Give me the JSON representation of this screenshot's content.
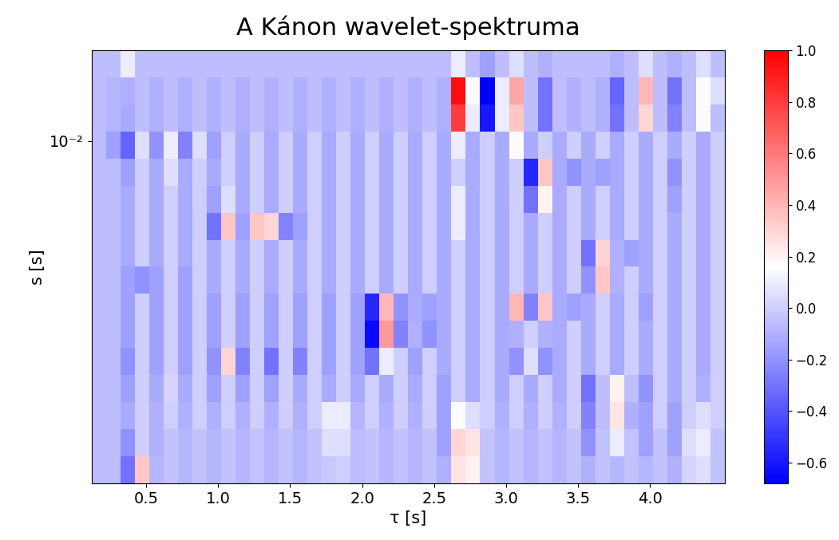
{
  "chart_data": {
    "type": "heatmap",
    "title": "A Kánon wavelet-spektruma",
    "x_label": "τ [s]",
    "y_label": "s [s]",
    "log": "y",
    "xlim": [
      0.12,
      4.52
    ],
    "xticks": [
      0.5,
      1.0,
      1.5,
      2.0,
      2.5,
      3.0,
      3.5,
      4.0
    ],
    "ylim": [
      0.00154,
      0.016425
    ],
    "yticks": [
      {
        "value": 0.01,
        "label": "10⁻²"
      }
    ],
    "x_edges": [
      0.12,
      0.22,
      0.32,
      0.42,
      0.52,
      0.62,
      0.72,
      0.82,
      0.92,
      1.02,
      1.12,
      1.22,
      1.32,
      1.42,
      1.52,
      1.62,
      1.72,
      1.82,
      1.92,
      2.02,
      2.12,
      2.22,
      2.32,
      2.42,
      2.52,
      2.62,
      2.72,
      2.82,
      2.92,
      3.02,
      3.12,
      3.22,
      3.32,
      3.42,
      3.52,
      3.62,
      3.72,
      3.82,
      3.92,
      4.02,
      4.12,
      4.22,
      4.32,
      4.42,
      4.52
    ],
    "y_edges": [
      0.00154,
      0.001785,
      0.00207,
      0.0024,
      0.002783,
      0.003227,
      0.003741,
      0.004337,
      0.005029,
      0.005831,
      0.006761,
      0.007838,
      0.009089,
      0.010537,
      0.012218,
      0.014166,
      0.016425
    ],
    "cells": [
      [
        -0.05,
        -0.05,
        -0.3,
        0.35,
        -0.08,
        -0.04,
        -0.08,
        -0.04,
        -0.08,
        -0.04,
        -0.08,
        -0.04,
        -0.08,
        -0.04,
        -0.08,
        -0.04,
        -0.02,
        0.0,
        -0.06,
        -0.04,
        -0.08,
        -0.04,
        -0.08,
        -0.04,
        -0.1,
        0.25,
        0.2,
        -0.04,
        -0.08,
        -0.04,
        -0.08,
        -0.04,
        -0.08,
        -0.04,
        -0.1,
        -0.04,
        -0.08,
        -0.04,
        -0.08,
        -0.04,
        -0.1,
        0.02,
        0.05,
        -0.04
      ],
      [
        -0.05,
        -0.05,
        -0.2,
        0.0,
        -0.1,
        -0.04,
        -0.08,
        -0.04,
        -0.08,
        -0.04,
        -0.08,
        -0.04,
        -0.08,
        -0.04,
        -0.08,
        -0.04,
        0.05,
        0.05,
        -0.06,
        -0.04,
        -0.08,
        -0.04,
        -0.08,
        -0.04,
        -0.15,
        0.3,
        0.25,
        -0.04,
        -0.08,
        -0.04,
        -0.08,
        -0.04,
        -0.08,
        -0.04,
        -0.2,
        -0.04,
        0.1,
        -0.04,
        -0.15,
        -0.04,
        -0.15,
        0.05,
        0.1,
        -0.04
      ],
      [
        -0.05,
        -0.05,
        -0.12,
        0.0,
        -0.1,
        0.0,
        -0.1,
        0.0,
        -0.1,
        0.0,
        -0.1,
        0.0,
        -0.1,
        0.0,
        -0.1,
        0.0,
        0.1,
        0.1,
        -0.08,
        0.0,
        -0.1,
        0.0,
        -0.1,
        0.0,
        -0.15,
        0.15,
        0.05,
        0.0,
        -0.1,
        0.0,
        -0.1,
        0.0,
        -0.1,
        0.0,
        -0.25,
        -0.05,
        0.25,
        -0.1,
        -0.15,
        0.0,
        -0.15,
        0.0,
        0.05,
        0.0
      ],
      [
        -0.05,
        -0.05,
        -0.15,
        0.0,
        -0.12,
        0.02,
        -0.12,
        0.0,
        -0.15,
        0.0,
        -0.15,
        0.0,
        -0.15,
        0.0,
        -0.12,
        0.0,
        -0.12,
        0.0,
        -0.12,
        0.0,
        -0.12,
        0.0,
        -0.12,
        0.0,
        -0.15,
        0.0,
        -0.12,
        0.0,
        -0.12,
        0.0,
        -0.12,
        0.0,
        -0.12,
        0.0,
        -0.3,
        -0.05,
        0.2,
        -0.05,
        -0.2,
        0.0,
        -0.12,
        0.0,
        -0.1,
        0.0
      ],
      [
        -0.05,
        -0.05,
        -0.2,
        0.0,
        -0.15,
        0.0,
        -0.15,
        0.0,
        -0.2,
        0.3,
        -0.25,
        0.0,
        -0.3,
        0.0,
        -0.25,
        0.0,
        -0.15,
        0.0,
        -0.15,
        -0.3,
        0.1,
        0.0,
        -0.15,
        0.0,
        -0.12,
        0.0,
        -0.12,
        0.0,
        -0.12,
        -0.2,
        0.05,
        -0.2,
        -0.12,
        0.0,
        -0.12,
        0.0,
        -0.12,
        0.0,
        -0.12,
        0.0,
        -0.12,
        0.0,
        -0.12,
        0.0
      ],
      [
        -0.05,
        -0.05,
        -0.15,
        0.0,
        -0.15,
        0.0,
        -0.15,
        0.0,
        -0.15,
        0.0,
        -0.15,
        0.0,
        -0.15,
        0.0,
        -0.15,
        0.0,
        -0.15,
        0.0,
        -0.15,
        -0.65,
        0.5,
        -0.25,
        -0.1,
        -0.2,
        -0.12,
        0.0,
        -0.12,
        0.0,
        -0.12,
        -0.1,
        0.0,
        -0.1,
        -0.12,
        0.0,
        -0.12,
        0.0,
        -0.12,
        0.0,
        -0.12,
        0.0,
        -0.12,
        0.0,
        -0.12,
        0.0
      ],
      [
        -0.05,
        -0.05,
        -0.15,
        0.0,
        -0.15,
        0.0,
        -0.15,
        0.0,
        -0.15,
        0.0,
        -0.15,
        0.0,
        -0.15,
        0.0,
        -0.15,
        0.0,
        -0.15,
        0.0,
        -0.15,
        -0.55,
        0.4,
        -0.2,
        -0.12,
        -0.15,
        -0.12,
        0.0,
        -0.12,
        0.0,
        -0.12,
        0.4,
        -0.25,
        0.35,
        -0.12,
        -0.15,
        -0.12,
        0.0,
        -0.12,
        0.0,
        -0.15,
        0.0,
        -0.12,
        0.0,
        -0.12,
        0.0
      ],
      [
        -0.05,
        -0.05,
        -0.15,
        -0.2,
        -0.15,
        0.0,
        -0.15,
        0.0,
        -0.12,
        0.0,
        -0.12,
        0.0,
        -0.12,
        0.0,
        -0.12,
        0.0,
        -0.12,
        0.0,
        -0.12,
        0.0,
        -0.12,
        0.0,
        -0.12,
        0.0,
        -0.12,
        0.0,
        -0.12,
        0.0,
        -0.12,
        0.0,
        -0.12,
        0.0,
        -0.12,
        0.0,
        -0.2,
        0.35,
        -0.1,
        0.0,
        -0.12,
        0.0,
        -0.12,
        0.0,
        -0.12,
        0.0
      ],
      [
        -0.05,
        -0.05,
        -0.12,
        0.0,
        -0.12,
        0.0,
        -0.12,
        0.0,
        -0.12,
        0.0,
        -0.12,
        0.0,
        -0.12,
        0.0,
        -0.12,
        0.0,
        -0.12,
        0.0,
        -0.12,
        0.0,
        -0.12,
        0.0,
        -0.12,
        0.0,
        -0.12,
        0.0,
        -0.12,
        0.0,
        -0.12,
        0.0,
        -0.12,
        0.0,
        -0.12,
        0.0,
        -0.3,
        0.3,
        -0.1,
        -0.15,
        -0.12,
        0.0,
        -0.12,
        0.0,
        -0.12,
        0.0
      ],
      [
        -0.05,
        -0.05,
        -0.12,
        0.0,
        -0.12,
        0.0,
        -0.12,
        0.0,
        -0.3,
        0.35,
        -0.15,
        0.35,
        0.3,
        -0.25,
        -0.15,
        0.0,
        -0.12,
        0.0,
        -0.12,
        0.0,
        -0.12,
        0.0,
        -0.12,
        0.0,
        -0.12,
        0.1,
        -0.12,
        0.0,
        -0.12,
        0.0,
        -0.12,
        0.0,
        -0.12,
        0.0,
        -0.12,
        0.0,
        -0.12,
        0.0,
        -0.12,
        0.0,
        -0.12,
        0.0,
        -0.12,
        0.0
      ],
      [
        -0.05,
        -0.05,
        -0.12,
        0.0,
        -0.12,
        0.0,
        -0.12,
        0.0,
        -0.15,
        0.05,
        -0.12,
        0.0,
        -0.12,
        0.0,
        -0.12,
        0.0,
        -0.12,
        0.0,
        -0.12,
        0.0,
        -0.12,
        0.0,
        -0.12,
        0.0,
        -0.12,
        0.1,
        -0.12,
        0.0,
        -0.12,
        0.0,
        -0.3,
        0.2,
        -0.12,
        0.0,
        -0.12,
        0.0,
        -0.12,
        0.0,
        -0.12,
        0.0,
        -0.15,
        0.0,
        -0.12,
        0.0
      ],
      [
        -0.05,
        -0.05,
        -0.15,
        0.0,
        -0.12,
        0.05,
        -0.12,
        0.0,
        -0.12,
        0.0,
        -0.12,
        0.0,
        -0.12,
        0.0,
        -0.12,
        0.0,
        -0.12,
        0.0,
        -0.12,
        0.0,
        -0.12,
        0.0,
        -0.12,
        0.0,
        -0.12,
        0.0,
        -0.12,
        0.0,
        -0.12,
        0.0,
        -0.55,
        0.35,
        -0.12,
        -0.2,
        -0.12,
        -0.15,
        -0.12,
        0.0,
        -0.12,
        0.0,
        -0.2,
        0.0,
        -0.12,
        0.0
      ],
      [
        -0.05,
        -0.15,
        -0.35,
        0.05,
        -0.2,
        0.1,
        -0.25,
        0.05,
        -0.15,
        0.0,
        -0.12,
        0.0,
        -0.12,
        0.0,
        -0.12,
        0.0,
        -0.12,
        0.0,
        -0.12,
        0.0,
        -0.12,
        0.0,
        -0.12,
        0.0,
        -0.12,
        0.1,
        -0.12,
        0.0,
        -0.12,
        0.15,
        -0.12,
        0.0,
        -0.12,
        0.0,
        -0.12,
        0.0,
        -0.12,
        0.0,
        -0.12,
        0.0,
        -0.12,
        0.0,
        -0.12,
        0.0
      ],
      [
        -0.05,
        -0.08,
        -0.12,
        -0.05,
        -0.1,
        -0.05,
        -0.1,
        -0.05,
        -0.1,
        -0.05,
        -0.1,
        -0.05,
        -0.1,
        -0.05,
        -0.1,
        -0.05,
        -0.1,
        -0.05,
        -0.1,
        -0.05,
        -0.1,
        -0.05,
        -0.1,
        -0.05,
        -0.1,
        0.8,
        0.1,
        -0.6,
        0.1,
        0.35,
        -0.05,
        -0.3,
        -0.05,
        -0.1,
        -0.05,
        -0.1,
        -0.3,
        -0.05,
        0.3,
        -0.05,
        -0.25,
        -0.05,
        0.15,
        -0.05
      ],
      [
        -0.05,
        -0.08,
        -0.1,
        -0.05,
        -0.1,
        -0.05,
        -0.1,
        -0.05,
        -0.1,
        -0.05,
        -0.1,
        -0.05,
        -0.1,
        -0.05,
        -0.1,
        -0.05,
        -0.1,
        -0.05,
        -0.1,
        -0.05,
        -0.1,
        -0.05,
        -0.1,
        -0.05,
        -0.1,
        0.95,
        0.15,
        -0.68,
        0.1,
        0.45,
        -0.05,
        -0.3,
        -0.05,
        -0.1,
        -0.05,
        -0.1,
        -0.35,
        -0.05,
        0.4,
        -0.05,
        -0.3,
        -0.05,
        0.15,
        0.05
      ],
      [
        -0.05,
        -0.05,
        0.1,
        -0.05,
        -0.05,
        -0.05,
        -0.05,
        -0.05,
        -0.05,
        -0.05,
        -0.05,
        -0.05,
        -0.05,
        -0.05,
        -0.05,
        -0.05,
        -0.05,
        -0.05,
        -0.05,
        -0.05,
        -0.05,
        -0.05,
        -0.05,
        -0.05,
        -0.05,
        0.1,
        -0.05,
        -0.15,
        -0.05,
        0.05,
        -0.05,
        -0.1,
        -0.05,
        -0.05,
        -0.05,
        -0.05,
        -0.1,
        -0.05,
        0.05,
        -0.05,
        -0.1,
        -0.05,
        0.05,
        -0.05
      ]
    ],
    "colorbar": {
      "range": [
        -0.68,
        1.0
      ],
      "ticks": [
        {
          "value": -0.6,
          "label": "−0.6"
        },
        {
          "value": -0.4,
          "label": "−0.4"
        },
        {
          "value": -0.2,
          "label": "−0.2"
        },
        {
          "value": 0.0,
          "label": "0.0"
        },
        {
          "value": 0.2,
          "label": "0.2"
        },
        {
          "value": 0.4,
          "label": "0.4"
        },
        {
          "value": 0.6,
          "label": "0.6"
        },
        {
          "value": 0.8,
          "label": "0.8"
        },
        {
          "value": 1.0,
          "label": "1.0"
        }
      ]
    }
  }
}
